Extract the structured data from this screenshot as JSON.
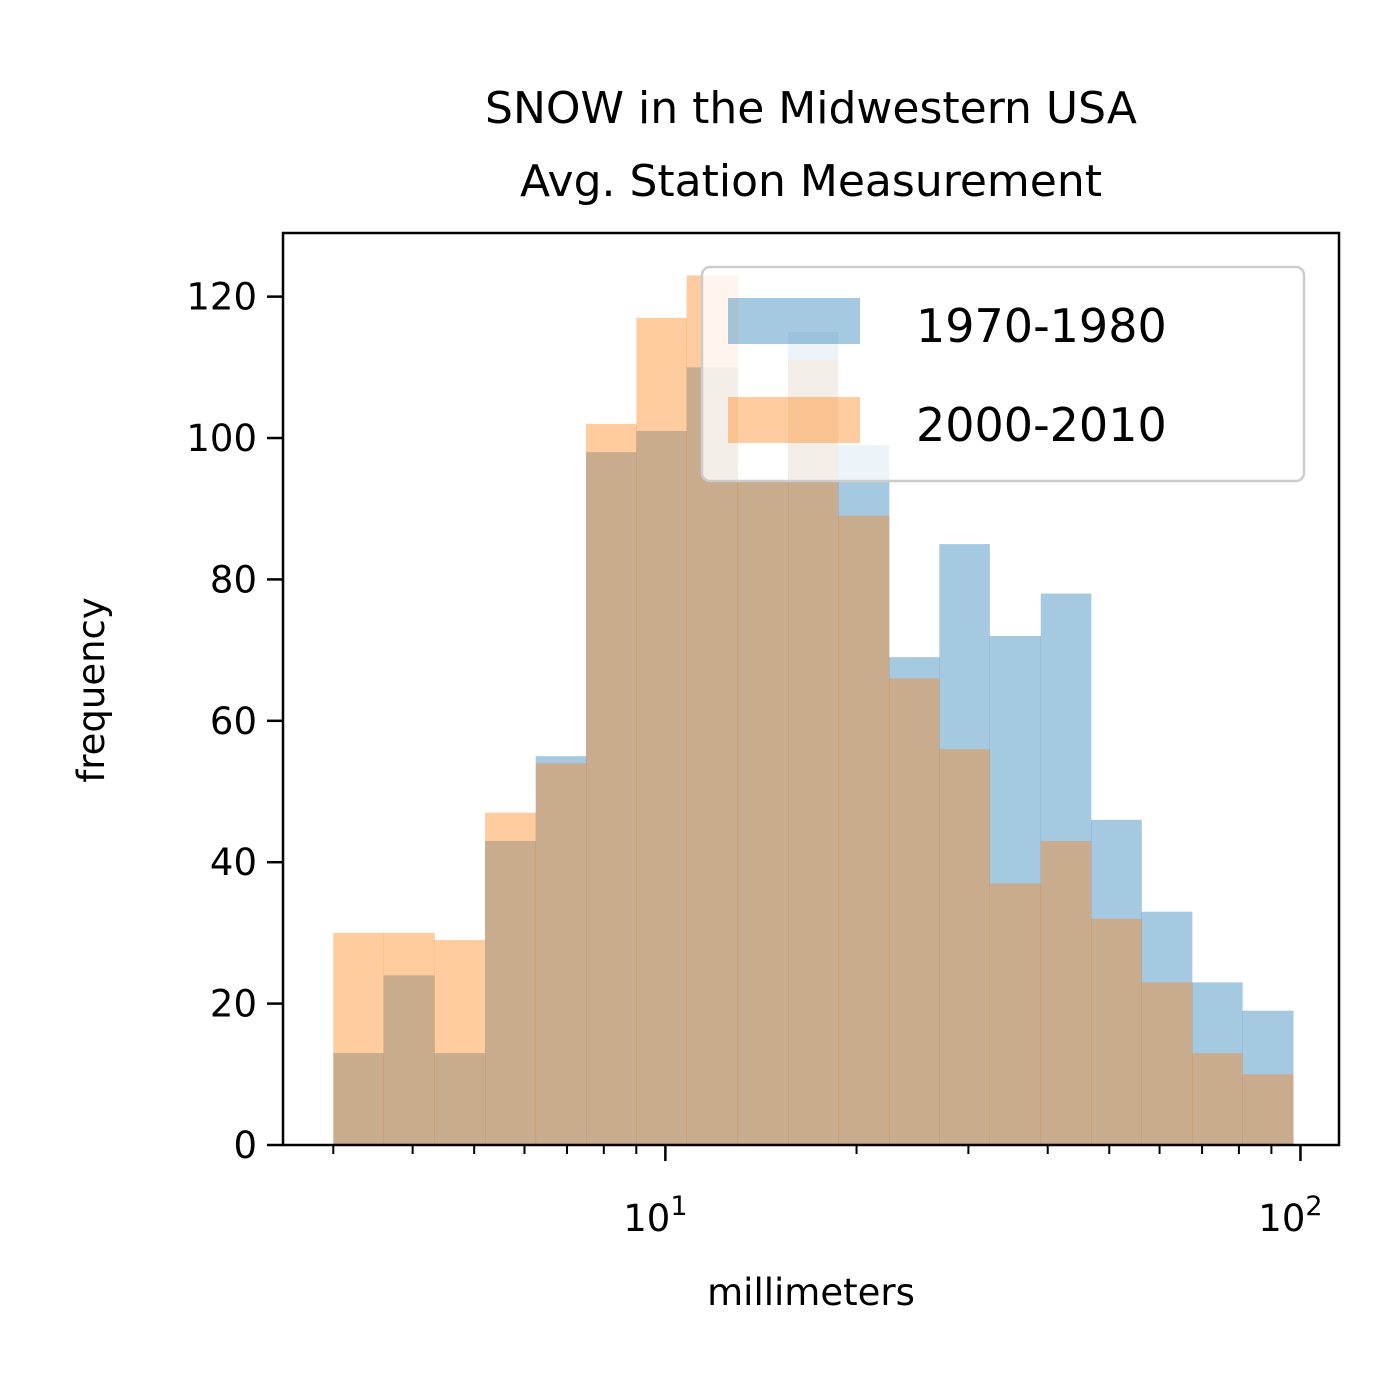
{
  "chart_data": {
    "type": "bar",
    "subtype": "overlaid-histogram",
    "title": [
      "SNOW in the Midwestern USA",
      "Avg. Station Measurement"
    ],
    "xlabel": "millimeters",
    "ylabel": "frequency",
    "xscale": "log",
    "xlim": [
      2.5,
      115
    ],
    "ylim": [
      0,
      129
    ],
    "grid": false,
    "legend": {
      "placement": "top-right"
    },
    "bin_edges": [
      3,
      3.6,
      4.33,
      5.2,
      6.25,
      7.5,
      9.0,
      10.8,
      13.0,
      15.6,
      18.7,
      22.5,
      27.0,
      32.4,
      39.0,
      46.8,
      56.2,
      67.5,
      81.0,
      97.4
    ],
    "series": [
      {
        "name": "1970-1980",
        "color": "#1f77b4",
        "opacity": 0.4,
        "counts": [
          13,
          24,
          13,
          43,
          55,
          98,
          101,
          110,
          94,
          115,
          99,
          69,
          85,
          72,
          78,
          46,
          33,
          23,
          19
        ]
      },
      {
        "name": "2000-2010",
        "color": "#ff7f0e",
        "opacity": 0.4,
        "counts": [
          30,
          30,
          29,
          47,
          54,
          102,
          117,
          123,
          94,
          111,
          89,
          66,
          56,
          37,
          43,
          32,
          23,
          13,
          10
        ]
      }
    ],
    "y_ticks": [
      0,
      20,
      40,
      60,
      80,
      100,
      120
    ],
    "x_major_ticks": [
      {
        "value": 10,
        "base": "10",
        "exp": "1"
      },
      {
        "value": 100,
        "base": "10",
        "exp": "2"
      }
    ],
    "x_minor_ticks": [
      3,
      4,
      5,
      6,
      7,
      8,
      9,
      20,
      30,
      40,
      50,
      60,
      70,
      80,
      90
    ]
  }
}
